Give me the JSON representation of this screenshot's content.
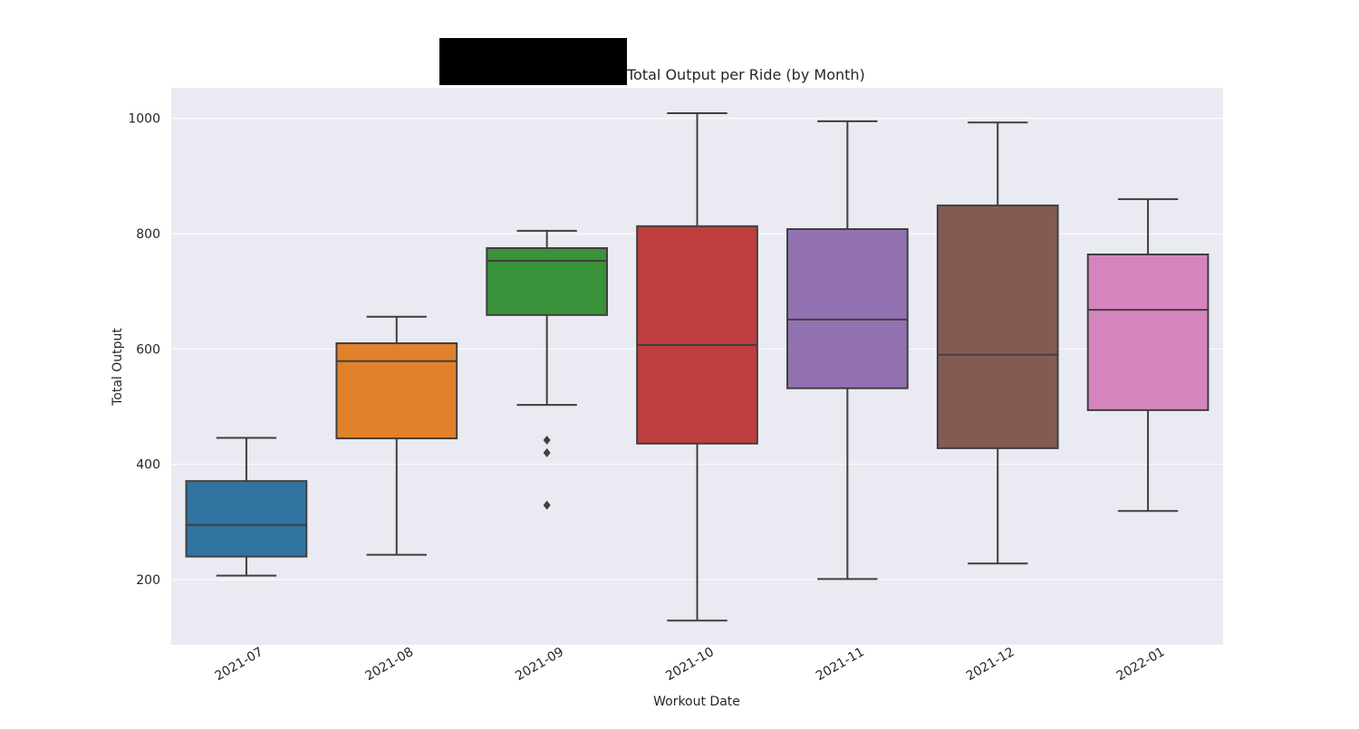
{
  "chart_data": {
    "type": "box",
    "title": "Total Output per Ride (by Month)",
    "xlabel": "Workout Date",
    "ylabel": "Total Output",
    "ylim": [
      87,
      1053
    ],
    "yticks": [
      200,
      400,
      600,
      800,
      1000
    ],
    "grid": true,
    "legend": "none",
    "categories": [
      "2021-07",
      "2021-08",
      "2021-09",
      "2021-10",
      "2021-11",
      "2021-12",
      "2022-01"
    ],
    "colors": [
      "#3274a1",
      "#e1812c",
      "#3a923a",
      "#c03d3e",
      "#9372b2",
      "#845b53",
      "#d684bd"
    ],
    "boxes": [
      {
        "whisker_low": 207,
        "q1": 240,
        "median": 295,
        "q3": 371,
        "whisker_high": 446,
        "outliers": []
      },
      {
        "whisker_low": 243,
        "q1": 445,
        "median": 579,
        "q3": 610,
        "whisker_high": 656,
        "outliers": []
      },
      {
        "whisker_low": 503,
        "q1": 659,
        "median": 753,
        "q3": 775,
        "whisker_high": 805,
        "outliers": [
          442,
          420,
          329
        ]
      },
      {
        "whisker_low": 129,
        "q1": 436,
        "median": 607,
        "q3": 813,
        "whisker_high": 1009,
        "outliers": []
      },
      {
        "whisker_low": 201,
        "q1": 532,
        "median": 651,
        "q3": 808,
        "whisker_high": 995,
        "outliers": []
      },
      {
        "whisker_low": 228,
        "q1": 428,
        "median": 590,
        "q3": 849,
        "whisker_high": 993,
        "outliers": []
      },
      {
        "whisker_low": 319,
        "q1": 494,
        "median": 668,
        "q3": 764,
        "whisker_high": 860,
        "outliers": []
      }
    ]
  }
}
